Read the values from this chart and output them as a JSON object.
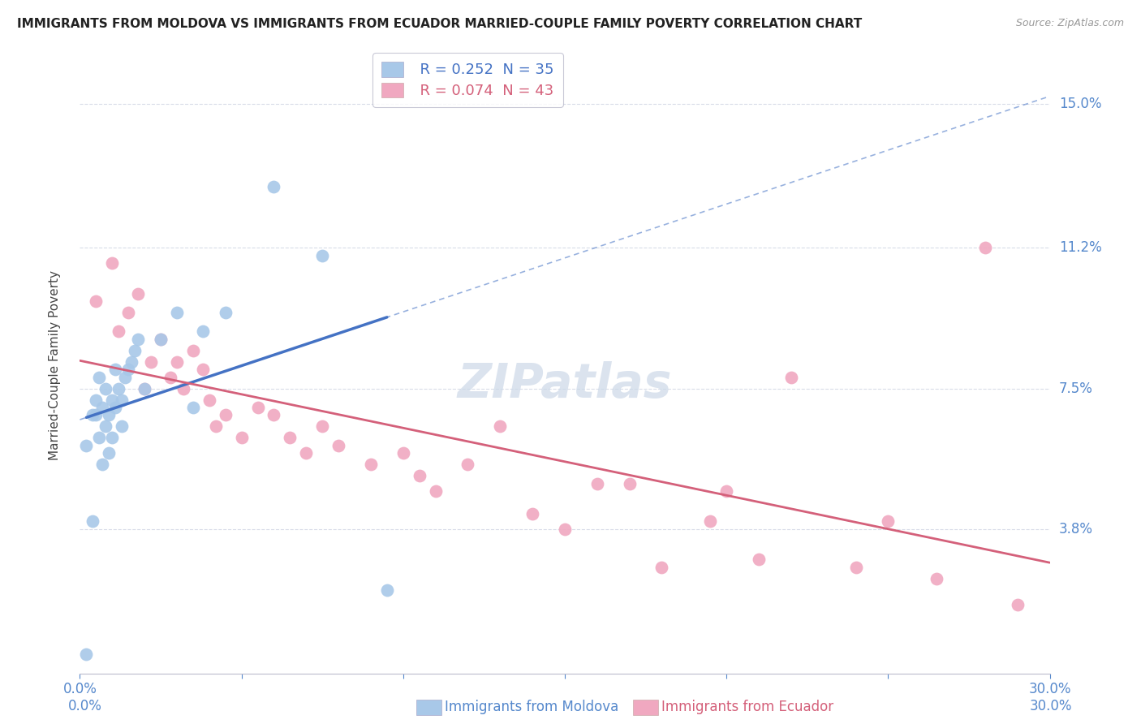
{
  "title": "IMMIGRANTS FROM MOLDOVA VS IMMIGRANTS FROM ECUADOR MARRIED-COUPLE FAMILY POVERTY CORRELATION CHART",
  "source": "Source: ZipAtlas.com",
  "ylabel": "Married-Couple Family Poverty",
  "xlim": [
    0.0,
    0.3
  ],
  "ylim": [
    0.0,
    0.162
  ],
  "ytick_values": [
    0.038,
    0.075,
    0.112,
    0.15
  ],
  "ytick_labels": [
    "3.8%",
    "7.5%",
    "11.2%",
    "15.0%"
  ],
  "moldova_color": "#a8c8e8",
  "ecuador_color": "#f0a8c0",
  "moldova_line_color": "#4472c4",
  "ecuador_line_color": "#d4607a",
  "moldova_R": 0.252,
  "moldova_N": 35,
  "ecuador_R": 0.074,
  "ecuador_N": 43,
  "moldova_label": "Immigrants from Moldova",
  "ecuador_label": "Immigrants from Ecuador",
  "background_color": "#ffffff",
  "grid_color": "#d8dce8",
  "watermark_color": "#ccd8e8",
  "moldova_x": [
    0.002,
    0.002,
    0.004,
    0.004,
    0.005,
    0.005,
    0.006,
    0.006,
    0.007,
    0.007,
    0.008,
    0.008,
    0.009,
    0.009,
    0.01,
    0.01,
    0.011,
    0.011,
    0.012,
    0.013,
    0.013,
    0.014,
    0.015,
    0.016,
    0.017,
    0.018,
    0.02,
    0.025,
    0.03,
    0.035,
    0.038,
    0.045,
    0.06,
    0.075,
    0.095
  ],
  "moldova_y": [
    0.005,
    0.06,
    0.04,
    0.068,
    0.068,
    0.072,
    0.062,
    0.078,
    0.055,
    0.07,
    0.065,
    0.075,
    0.058,
    0.068,
    0.062,
    0.072,
    0.07,
    0.08,
    0.075,
    0.065,
    0.072,
    0.078,
    0.08,
    0.082,
    0.085,
    0.088,
    0.075,
    0.088,
    0.095,
    0.07,
    0.09,
    0.095,
    0.128,
    0.11,
    0.022
  ],
  "ecuador_x": [
    0.005,
    0.01,
    0.012,
    0.015,
    0.018,
    0.02,
    0.022,
    0.025,
    0.028,
    0.03,
    0.032,
    0.035,
    0.038,
    0.04,
    0.042,
    0.045,
    0.05,
    0.055,
    0.06,
    0.065,
    0.07,
    0.075,
    0.08,
    0.09,
    0.1,
    0.105,
    0.11,
    0.12,
    0.13,
    0.14,
    0.15,
    0.16,
    0.17,
    0.18,
    0.195,
    0.2,
    0.21,
    0.22,
    0.24,
    0.25,
    0.265,
    0.28,
    0.29
  ],
  "ecuador_y": [
    0.098,
    0.108,
    0.09,
    0.095,
    0.1,
    0.075,
    0.082,
    0.088,
    0.078,
    0.082,
    0.075,
    0.085,
    0.08,
    0.072,
    0.065,
    0.068,
    0.062,
    0.07,
    0.068,
    0.062,
    0.058,
    0.065,
    0.06,
    0.055,
    0.058,
    0.052,
    0.048,
    0.055,
    0.065,
    0.042,
    0.038,
    0.05,
    0.05,
    0.028,
    0.04,
    0.048,
    0.03,
    0.078,
    0.028,
    0.04,
    0.025,
    0.112,
    0.018
  ]
}
